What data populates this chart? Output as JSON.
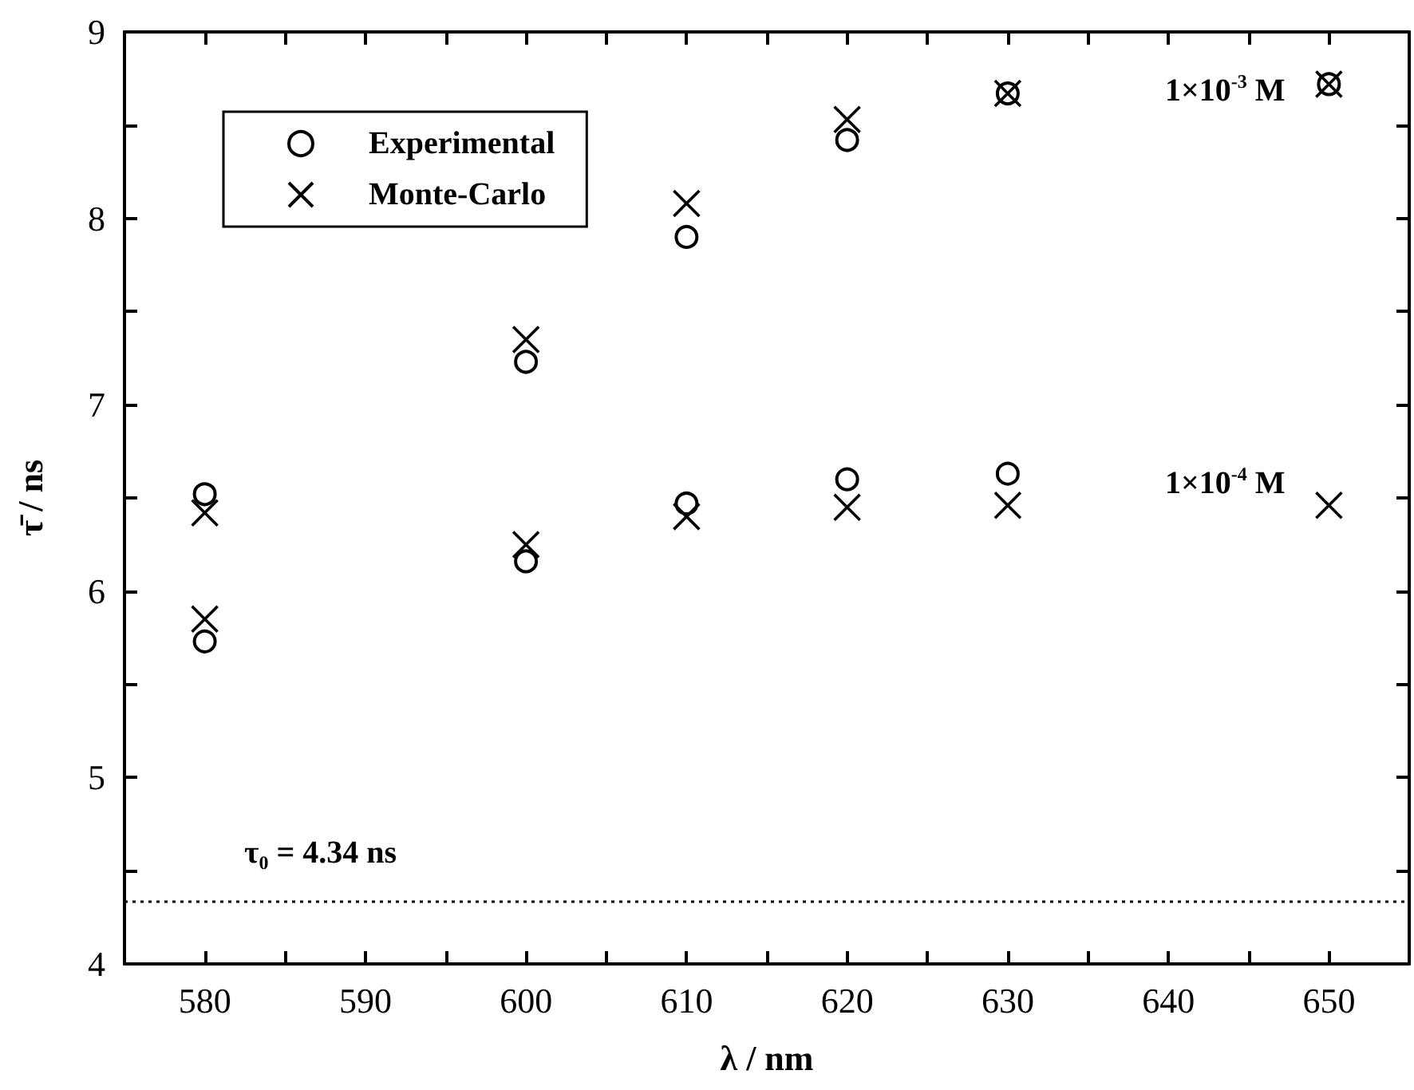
{
  "chart_data": {
    "type": "scatter",
    "xlabel": "λ / nm",
    "ylabel": "τ̄ / ns",
    "xlim": [
      575,
      655
    ],
    "xticks": [
      580,
      {
        "value": 585,
        "label": null
      },
      590,
      {
        "value": 595,
        "label": null
      },
      600,
      {
        "value": 605,
        "label": null
      },
      610,
      {
        "value": 615,
        "label": null
      },
      620,
      {
        "value": 625,
        "label": null
      },
      630,
      {
        "value": 635,
        "label": null
      },
      640,
      {
        "value": 645,
        "label": null
      },
      650
    ],
    "ylim": [
      4,
      9
    ],
    "yticks": [
      4,
      {
        "value": 4.5,
        "label": null
      },
      5,
      {
        "value": 5.5,
        "label": null
      },
      6,
      {
        "value": 6.5,
        "label": null
      },
      7,
      {
        "value": 7.5,
        "label": null
      },
      8,
      {
        "value": 8.5,
        "label": null
      },
      9
    ],
    "series": [
      {
        "name": "Experimental",
        "color": "#000000",
        "marker": "circle",
        "x": [
          580,
          600,
          610,
          620,
          630,
          650,
          580,
          600,
          610,
          620,
          630
        ],
        "values": [
          6.52,
          7.23,
          7.9,
          8.42,
          8.67,
          8.72,
          5.73,
          6.16,
          6.47,
          6.6,
          6.63
        ]
      },
      {
        "name": "Monte-Carlo",
        "color": "#000000",
        "marker": "cross",
        "x": [
          580,
          600,
          610,
          620,
          630,
          650,
          580,
          600,
          610,
          620,
          630,
          650
        ],
        "values": [
          6.42,
          7.35,
          8.08,
          8.53,
          8.67,
          8.72,
          5.85,
          6.25,
          6.4,
          6.45,
          6.46,
          6.46
        ]
      }
    ],
    "ref_lines": [
      {
        "axis": "y",
        "value": 4.34,
        "label": "τ₀ = 4.34 ns",
        "color": "#000000",
        "line_style": "dotted"
      }
    ],
    "annotations": [
      "1×10$^{-3}$ M",
      "1×10$^{-4}$ M"
    ],
    "legend": "top left",
    "grid": false
  }
}
